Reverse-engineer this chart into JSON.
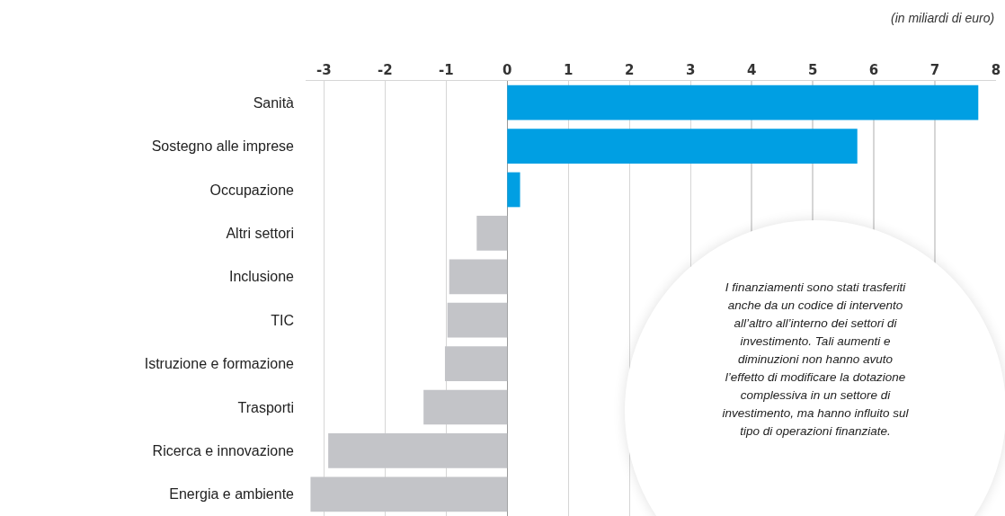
{
  "chart_data": {
    "type": "bar",
    "orientation": "horizontal",
    "xlabel": "(in miliardi di euro)",
    "categories": [
      "Sanità",
      "Sostegno alle imprese",
      "Occupazione",
      "Altri settori",
      "Inclusione",
      "TIC",
      "Istruzione e formazione",
      "Trasporti",
      "Ricerca e innovazione",
      "Energia e ambiente"
    ],
    "values": [
      7.71,
      5.73,
      0.21,
      -0.5,
      -0.95,
      -0.98,
      -1.02,
      -1.37,
      -2.93,
      -3.22
    ],
    "colors": [
      "#009fe3",
      "#009fe3",
      "#009fe3",
      "#c3c4c8",
      "#c3c4c8",
      "#c3c4c8",
      "#c3c4c8",
      "#c3c4c8",
      "#c3c4c8",
      "#c3c4c8"
    ],
    "xlim": [
      -3.3,
      8
    ],
    "xticks": [
      -3,
      -2,
      -1,
      0,
      1,
      2,
      3,
      4,
      5,
      6,
      7,
      8
    ],
    "grid": "x",
    "annotations": [
      "I finanziamenti sono stati trasferiti anche da un codice di intervento all’altro all’interno dei settori di investimento. Tali aumenti e diminuzioni non hanno avuto l’effetto di modificare la dotazione complessiva in un settore di investimento, ma hanno influito sul tipo di operazioni finanziate."
    ]
  }
}
